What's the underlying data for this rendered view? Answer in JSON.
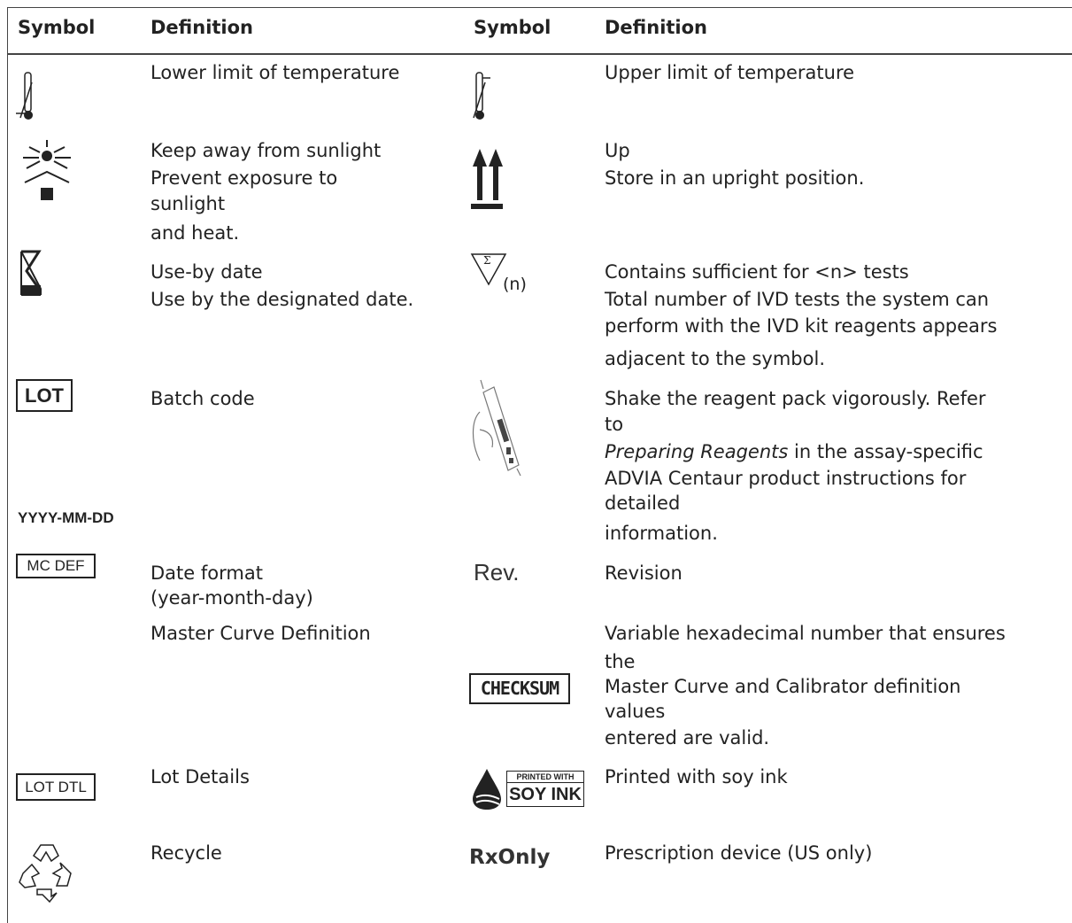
{
  "header": {
    "symbol_left": "Symbol",
    "definition_left": "Definition",
    "symbol_right": "Symbol",
    "definition_right": "Definition"
  },
  "rows": [
    {
      "left_definition": [
        "Lower limit of temperature"
      ],
      "right_definition": [
        "Upper limit of temperature"
      ]
    },
    {
      "left_definition": [
        "Keep away from sunlight",
        "Prevent exposure to",
        "sunlight",
        "and heat."
      ],
      "right_definition": [
        "Up",
        "Store in an upright position."
      ]
    },
    {
      "left_definition": [
        "Use-by date",
        "Use by the designated date."
      ],
      "right_symbol": [
        "Σ",
        "(n)"
      ],
      "right_definition": [
        "Contains sufficient for <n> tests",
        "Total number of IVD tests the system can",
        "perform with the IVD kit reagents appears",
        "adjacent to the symbol."
      ]
    },
    {
      "left_symbol": "LOT",
      "left_symbol_extra": "YYYY-MM-DD",
      "left_definition": [
        "Batch code"
      ],
      "right_definition": [
        "Shake the reagent pack vigorously. Refer",
        "to",
        {
          "italic": "Preparing Reagents",
          "text": "in the assay-specific"
        },
        "ADVIA Centaur product instructions for",
        "detailed",
        "information."
      ]
    },
    {
      "left_symbol": "MC DEF",
      "left_definition": [
        "Date format",
        "(year-month-day)"
      ],
      "right_symbol": "Rev.",
      "right_definition": [
        "Revision"
      ]
    },
    {
      "left_definition": [
        "Master Curve Definition"
      ],
      "right_symbol": "CHECKSUM",
      "right_definition": [
        "Variable hexadecimal number that ensures",
        "the",
        "Master Curve and Calibrator definition",
        "values",
        "entered are valid."
      ]
    },
    {
      "left_symbol": "LOT DTL",
      "left_definition": [
        "Lot Details"
      ],
      "right_symbol": [
        "PRINTED WITH",
        "SOY INK"
      ],
      "right_definition": [
        "Printed with soy ink"
      ]
    },
    {
      "left_definition": [
        "Recycle"
      ],
      "right_symbol": "RxOnly",
      "right_definition": [
        "Prescription device (US only)"
      ]
    }
  ]
}
